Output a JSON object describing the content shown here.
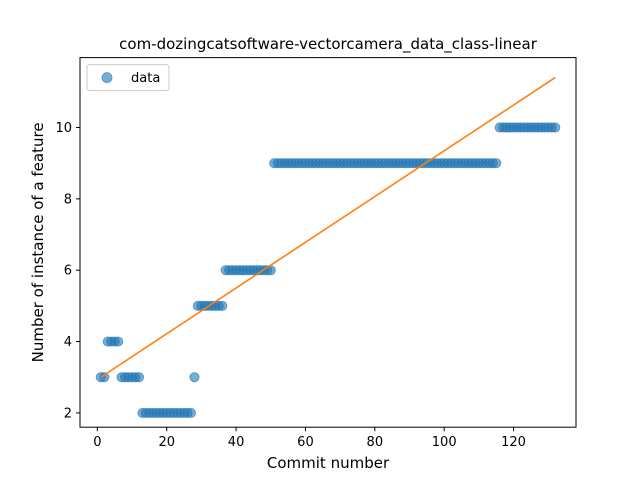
{
  "chart_data": {
    "type": "scatter",
    "title": "com-dozingcatsoftware-vectorcamera_data_class-linear",
    "xlabel": "Commit number",
    "ylabel": "Number of instance of a feature",
    "xlim": [
      -5,
      138
    ],
    "ylim": [
      1.6,
      11.96
    ],
    "xticks": [
      0,
      20,
      40,
      60,
      80,
      100,
      120
    ],
    "yticks": [
      2,
      4,
      6,
      8,
      10
    ],
    "legend": {
      "position": "upper-left",
      "entries": [
        "data"
      ]
    },
    "colors": {
      "data": "#1f77b4",
      "fit": "#ff7f0e"
    },
    "series": [
      {
        "name": "data",
        "kind": "scatter",
        "points": [
          [
            1,
            3
          ],
          [
            2,
            3
          ],
          [
            3,
            4
          ],
          [
            4,
            4
          ],
          [
            5,
            4
          ],
          [
            6,
            4
          ],
          [
            7,
            3
          ],
          [
            8,
            3
          ],
          [
            9,
            3
          ],
          [
            10,
            3
          ],
          [
            11,
            3
          ],
          [
            12,
            3
          ],
          [
            13,
            2
          ],
          [
            14,
            2
          ],
          [
            15,
            2
          ],
          [
            16,
            2
          ],
          [
            17,
            2
          ],
          [
            18,
            2
          ],
          [
            19,
            2
          ],
          [
            20,
            2
          ],
          [
            21,
            2
          ],
          [
            22,
            2
          ],
          [
            23,
            2
          ],
          [
            24,
            2
          ],
          [
            25,
            2
          ],
          [
            26,
            2
          ],
          [
            27,
            2
          ],
          [
            28,
            3
          ],
          [
            29,
            5
          ],
          [
            30,
            5
          ],
          [
            31,
            5
          ],
          [
            32,
            5
          ],
          [
            33,
            5
          ],
          [
            34,
            5
          ],
          [
            35,
            5
          ],
          [
            36,
            5
          ],
          [
            37,
            6
          ],
          [
            38,
            6
          ],
          [
            39,
            6
          ],
          [
            40,
            6
          ],
          [
            41,
            6
          ],
          [
            42,
            6
          ],
          [
            43,
            6
          ],
          [
            44,
            6
          ],
          [
            45,
            6
          ],
          [
            46,
            6
          ],
          [
            47,
            6
          ],
          [
            48,
            6
          ],
          [
            49,
            6
          ],
          [
            50,
            6
          ],
          [
            51,
            9
          ],
          [
            52,
            9
          ],
          [
            53,
            9
          ],
          [
            54,
            9
          ],
          [
            55,
            9
          ],
          [
            56,
            9
          ],
          [
            57,
            9
          ],
          [
            58,
            9
          ],
          [
            59,
            9
          ],
          [
            60,
            9
          ],
          [
            61,
            9
          ],
          [
            62,
            9
          ],
          [
            63,
            9
          ],
          [
            64,
            9
          ],
          [
            65,
            9
          ],
          [
            66,
            9
          ],
          [
            67,
            9
          ],
          [
            68,
            9
          ],
          [
            69,
            9
          ],
          [
            70,
            9
          ],
          [
            71,
            9
          ],
          [
            72,
            9
          ],
          [
            73,
            9
          ],
          [
            74,
            9
          ],
          [
            75,
            9
          ],
          [
            76,
            9
          ],
          [
            77,
            9
          ],
          [
            78,
            9
          ],
          [
            79,
            9
          ],
          [
            80,
            9
          ],
          [
            81,
            9
          ],
          [
            82,
            9
          ],
          [
            83,
            9
          ],
          [
            84,
            9
          ],
          [
            85,
            9
          ],
          [
            86,
            9
          ],
          [
            87,
            9
          ],
          [
            88,
            9
          ],
          [
            89,
            9
          ],
          [
            90,
            9
          ],
          [
            91,
            9
          ],
          [
            92,
            9
          ],
          [
            93,
            9
          ],
          [
            94,
            9
          ],
          [
            95,
            9
          ],
          [
            96,
            9
          ],
          [
            97,
            9
          ],
          [
            98,
            9
          ],
          [
            99,
            9
          ],
          [
            100,
            9
          ],
          [
            101,
            9
          ],
          [
            102,
            9
          ],
          [
            103,
            9
          ],
          [
            104,
            9
          ],
          [
            105,
            9
          ],
          [
            106,
            9
          ],
          [
            107,
            9
          ],
          [
            108,
            9
          ],
          [
            109,
            9
          ],
          [
            110,
            9
          ],
          [
            111,
            9
          ],
          [
            112,
            9
          ],
          [
            113,
            9
          ],
          [
            114,
            9
          ],
          [
            115,
            9
          ],
          [
            116,
            10
          ],
          [
            117,
            10
          ],
          [
            118,
            10
          ],
          [
            119,
            10
          ],
          [
            120,
            10
          ],
          [
            121,
            10
          ],
          [
            122,
            10
          ],
          [
            123,
            10
          ],
          [
            124,
            10
          ],
          [
            125,
            10
          ],
          [
            126,
            10
          ],
          [
            127,
            10
          ],
          [
            128,
            10
          ],
          [
            129,
            10
          ],
          [
            130,
            10
          ],
          [
            131,
            10
          ],
          [
            132,
            10
          ]
        ]
      },
      {
        "kind": "line",
        "points": [
          [
            1,
            3.0
          ],
          [
            132,
            11.4
          ]
        ]
      }
    ]
  }
}
